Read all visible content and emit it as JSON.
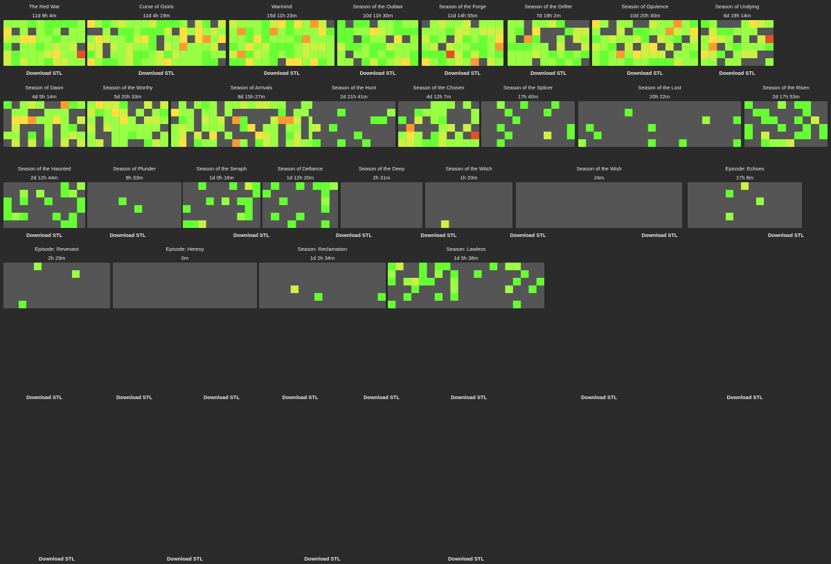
{
  "download_label": "Download STL",
  "colors": {
    "background": "#2b2b2b",
    "empty_cell": "#555555",
    "bright_green": "#66ff33",
    "green": "#99ff44",
    "yellow_green": "#ccf044",
    "yellow": "#ffe040",
    "orange": "#ff9933",
    "red": "#e85020"
  },
  "seasons": [
    {
      "name": "The Red War",
      "playtime": "11d 9h 4m",
      "activity": 0.95
    },
    {
      "name": "Curse of Osiris",
      "playtime": "11d 4h 19m",
      "activity": 0.8
    },
    {
      "name": "Warmind",
      "playtime": "15d 11h 23m",
      "activity": 0.97
    },
    {
      "name": "Season of the Outlaw",
      "playtime": "10d 11h 30m",
      "activity": 0.85
    },
    {
      "name": "Season of the Forge",
      "playtime": "11d 14h 55m",
      "activity": 0.85
    },
    {
      "name": "Season of the Drifter",
      "playtime": "7d 19h 2m",
      "activity": 0.75
    },
    {
      "name": "Season of Opulence",
      "playtime": "10d 20h 30m",
      "activity": 0.78
    },
    {
      "name": "Season of Undying",
      "playtime": "6d 19h 14m",
      "activity": 0.75
    },
    {
      "name": "Season of Dawn",
      "playtime": "4d 5h 14m",
      "activity": 0.65
    },
    {
      "name": "Season of the Worthy",
      "playtime": "5d 20h 33m",
      "activity": 0.7
    },
    {
      "name": "Season of Arrivals",
      "playtime": "8d 15h 27m",
      "activity": 0.6
    },
    {
      "name": "Season of the Hunt",
      "playtime": "2d 21h 41m",
      "activity": 0.2
    },
    {
      "name": "Season of the Chosen",
      "playtime": "4d 12h 7m",
      "activity": 0.55
    },
    {
      "name": "Season of the Splicer",
      "playtime": "17h 40m",
      "activity": 0.15
    },
    {
      "name": "Season of the Lost",
      "playtime": "20h 22m",
      "activity": 0.05
    },
    {
      "name": "Season of the Risen",
      "playtime": "2d 17h 53m",
      "activity": 0.35
    },
    {
      "name": "Season of the Haunted",
      "playtime": "2d 12h 44m",
      "activity": 0.45
    },
    {
      "name": "Season of Plunder",
      "playtime": "9h 33m",
      "activity": 0.04
    },
    {
      "name": "Season of the Seraph",
      "playtime": "1d 0h 16m",
      "activity": 0.25
    },
    {
      "name": "Season of Defiance",
      "playtime": "1d 12h 20m",
      "activity": 0.3
    },
    {
      "name": "Season of the Deep",
      "playtime": "2h 31m",
      "activity": 0.02
    },
    {
      "name": "Season of the Witch",
      "playtime": "1h 20m",
      "activity": 0.02
    },
    {
      "name": "Season of the Wish",
      "playtime": "24m",
      "activity": 0.0
    },
    {
      "name": "Episode: Echoes",
      "playtime": "17h 8m",
      "activity": 0.1
    },
    {
      "name": "Episode: Revenant",
      "playtime": "2h 29m",
      "activity": 0.03
    },
    {
      "name": "Episode: Heresy",
      "playtime": "0m",
      "activity": 0.0
    },
    {
      "name": "Season: Reclamation",
      "playtime": "1d 2h 34m",
      "activity": 0.03
    },
    {
      "name": "Season: Lawless",
      "playtime": "1d 5h 38m",
      "activity": 0.2
    }
  ]
}
